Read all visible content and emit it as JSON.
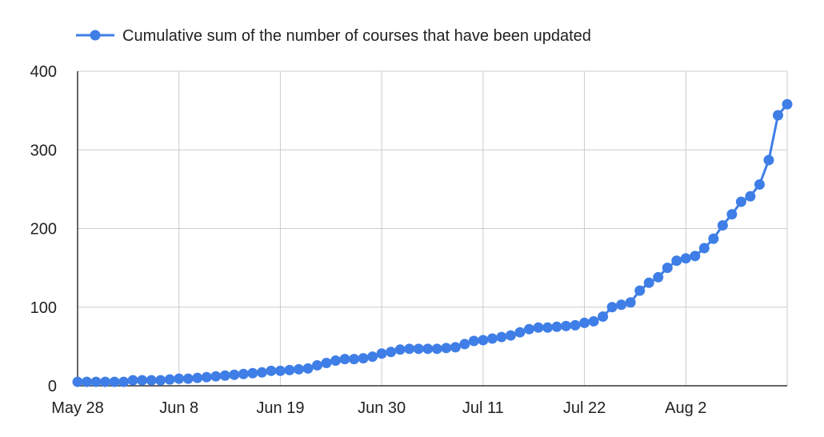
{
  "chart_data": {
    "type": "line",
    "title": "",
    "xlabel": "",
    "ylabel": "",
    "ylim": [
      0,
      400
    ],
    "y_ticks": [
      0,
      100,
      200,
      300,
      400
    ],
    "x_ticks": [
      "May 28",
      "Jun 8",
      "Jun 19",
      "Jun 30",
      "Jul 11",
      "Jul 22",
      "Aug 2"
    ],
    "x_start": "May 28",
    "x_end": "Aug 12",
    "grid": true,
    "legend_position": "top",
    "series": [
      {
        "name": "Cumulative sum of the number of courses that have been updated",
        "color": "#3f7ee6",
        "values": [
          5,
          5,
          5,
          5,
          5,
          5,
          7,
          7,
          7,
          7,
          8,
          9,
          9,
          10,
          11,
          12,
          13,
          14,
          15,
          16,
          17,
          19,
          19,
          20,
          21,
          22,
          26,
          29,
          32,
          34,
          34,
          35,
          37,
          41,
          43,
          46,
          47,
          47,
          47,
          47,
          48,
          49,
          53,
          57,
          58,
          60,
          62,
          64,
          68,
          72,
          74,
          74,
          75,
          76,
          77,
          80,
          82,
          88,
          100,
          103,
          106,
          121,
          131,
          138,
          150,
          159,
          162,
          165,
          175,
          187,
          204,
          218,
          234,
          241,
          256,
          287,
          344,
          358
        ]
      }
    ]
  }
}
